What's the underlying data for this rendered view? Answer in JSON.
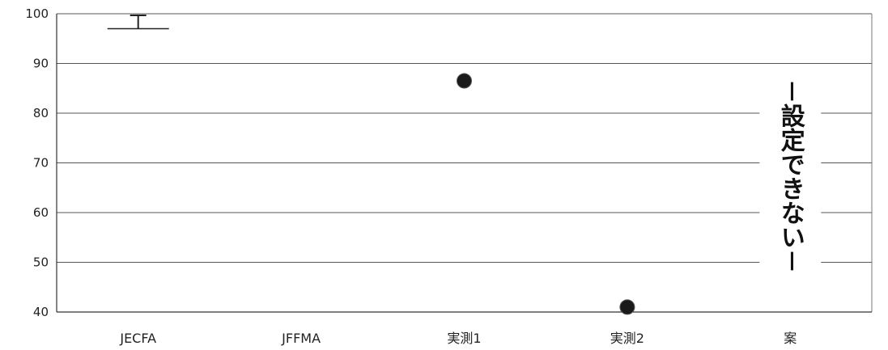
{
  "chart_data": {
    "type": "scatter",
    "title": "",
    "xlabel": "",
    "ylabel": "",
    "ylim": [
      40,
      100
    ],
    "yticks": [
      40,
      50,
      60,
      70,
      80,
      90,
      100
    ],
    "grid": true,
    "categories": [
      "JECFA",
      "JFFMA",
      "実測1",
      "実測2",
      "案"
    ],
    "points": [
      {
        "category": "実測1",
        "value": 86.5
      },
      {
        "category": "実測2",
        "value": 41
      }
    ],
    "error_bars": [
      {
        "category": "JECFA",
        "low": 97,
        "high": 100
      }
    ],
    "annotation": {
      "category": "案",
      "text": "－設定できない－"
    }
  }
}
